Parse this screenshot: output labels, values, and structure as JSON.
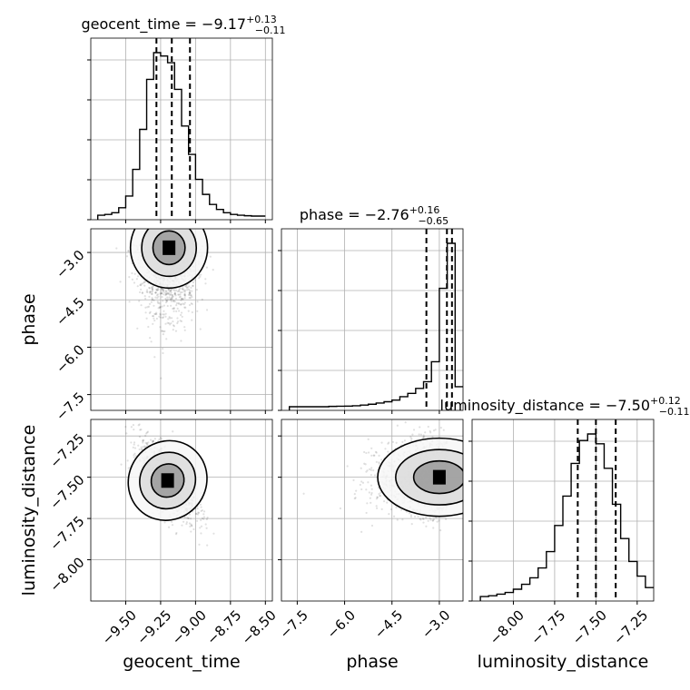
{
  "chart_data": {
    "type": "corner",
    "grid": true,
    "parameters": [
      "geocent_time",
      "phase",
      "luminosity_distance"
    ],
    "axis_labels": [
      "geocent_time",
      "phase",
      "luminosity_distance"
    ],
    "ranges": {
      "geocent_time": [
        -9.75,
        -8.45
      ],
      "phase": [
        -8.0,
        -2.25
      ],
      "luminosity_distance": [
        -8.25,
        -7.15
      ]
    },
    "ticks": {
      "geocent_time": [
        -9.5,
        -9.25,
        -9.0,
        -8.75,
        -8.5
      ],
      "phase": [
        -7.5,
        -6.0,
        -4.5,
        -3.0
      ],
      "luminosity_distance": [
        -8.0,
        -7.75,
        -7.5,
        -7.25
      ]
    },
    "tick_labels": {
      "geocent_time": [
        "−9.50",
        "−9.25",
        "−9.00",
        "−8.75",
        "−8.50"
      ],
      "phase": [
        "−7.5",
        "−6.0",
        "−4.5",
        "−3.0"
      ],
      "luminosity_distance": [
        "−8.00",
        "−7.75",
        "−7.50",
        "−7.25"
      ]
    },
    "titles": [
      {
        "param": "geocent_time",
        "main": "geocent_time = −9.17",
        "sup": "+0.13",
        "sub": "−0.11"
      },
      {
        "param": "phase",
        "main": "phase = −2.76",
        "sup": "+0.16",
        "sub": "−0.65"
      },
      {
        "param": "luminosity_distance",
        "main": "luminosity_distance = −7.50",
        "sup": "+0.12",
        "sub": "−0.11"
      }
    ],
    "quantiles": {
      "geocent_time": [
        -9.28,
        -9.17,
        -9.04
      ],
      "phase": [
        -3.41,
        -2.76,
        -2.6
      ],
      "luminosity_distance": [
        -7.61,
        -7.5,
        -7.38
      ]
    },
    "histograms": {
      "geocent_time": {
        "edges": [
          -9.7,
          -9.65,
          -9.6,
          -9.55,
          -9.5,
          -9.45,
          -9.4,
          -9.35,
          -9.3,
          -9.25,
          -9.2,
          -9.15,
          -9.1,
          -9.05,
          -9.0,
          -8.95,
          -8.9,
          -8.85,
          -8.8,
          -8.75,
          -8.7,
          -8.65,
          -8.6,
          -8.55,
          -8.5
        ],
        "counts": [
          0.5,
          1,
          2,
          5,
          12,
          28,
          52,
          82,
          98,
          96,
          92,
          76,
          54,
          37,
          22,
          13,
          7,
          4,
          2,
          1,
          0.5,
          0.2,
          0,
          0
        ]
      },
      "phase": {
        "edges": [
          -7.75,
          -7.5,
          -7.25,
          -7.0,
          -6.75,
          -6.5,
          -6.25,
          -6.0,
          -5.75,
          -5.5,
          -5.25,
          -5.0,
          -4.75,
          -4.5,
          -4.25,
          -4.0,
          -3.75,
          -3.5,
          -3.25,
          -3.0,
          -2.75,
          -2.5,
          -2.25
        ],
        "counts": [
          0,
          0,
          0,
          0,
          0,
          0.2,
          0.3,
          0.4,
          0.6,
          1,
          1.5,
          2.2,
          3,
          4,
          6,
          8,
          11,
          15,
          27,
          71,
          98,
          12
        ]
      },
      "luminosity_distance": {
        "edges": [
          -8.2,
          -8.15,
          -8.1,
          -8.05,
          -8.0,
          -7.95,
          -7.9,
          -7.85,
          -7.8,
          -7.75,
          -7.7,
          -7.65,
          -7.6,
          -7.55,
          -7.5,
          -7.45,
          -7.4,
          -7.35,
          -7.3,
          -7.25,
          -7.2,
          -7.15
        ],
        "counts": [
          0.5,
          1,
          2,
          3,
          5,
          8,
          12,
          18,
          28,
          44,
          62,
          82,
          96,
          100,
          94,
          79,
          57,
          36,
          22,
          13,
          6
        ]
      }
    },
    "pairs": [
      {
        "x": "geocent_time",
        "y": "phase",
        "center": [
          -9.19,
          -2.85
        ],
        "cov": [
          [
            0.01,
            0.0
          ],
          [
            0.0,
            0.35
          ]
        ]
      },
      {
        "x": "geocent_time",
        "y": "luminosity_distance",
        "center": [
          -9.2,
          -7.52
        ],
        "cov": [
          [
            0.01,
            -0.007
          ],
          [
            -0.007,
            0.013
          ]
        ]
      },
      {
        "x": "phase",
        "y": "luminosity_distance",
        "center": [
          -3.0,
          -7.5
        ],
        "cov": [
          [
            0.5,
            0.0
          ],
          [
            0.0,
            0.012
          ]
        ]
      }
    ]
  }
}
